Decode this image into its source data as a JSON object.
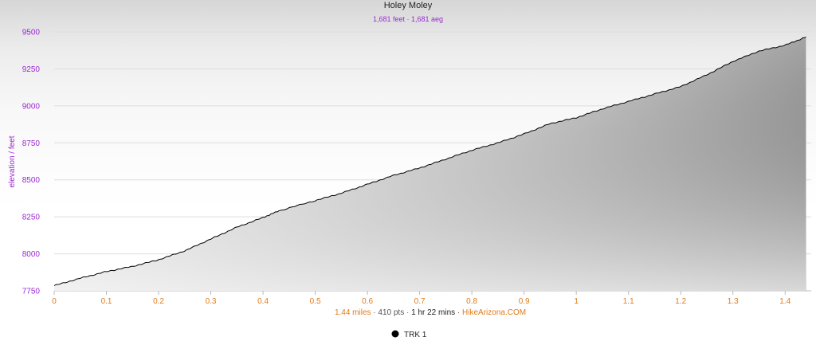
{
  "chart_data": {
    "type": "area",
    "title": "Holey Moley",
    "subtitle": "1,681 feet · 1,681 aeg",
    "ylabel": "elevation / feet",
    "xlabel": "",
    "xlim": [
      0,
      1.45
    ],
    "ylim": [
      7750,
      9500
    ],
    "yticks": [
      7750,
      8000,
      8250,
      8500,
      8750,
      9000,
      9250,
      9500
    ],
    "xticks": [
      0,
      0.1,
      0.2,
      0.3,
      0.4,
      0.5,
      0.6,
      0.7,
      0.8,
      0.9,
      1,
      1.1,
      1.2,
      1.3,
      1.4
    ],
    "grid": true,
    "legend_position": "bottom-center",
    "series": [
      {
        "name": "TRK 1",
        "color": "#000000",
        "x": [
          0,
          0.05,
          0.1,
          0.15,
          0.2,
          0.25,
          0.3,
          0.35,
          0.4,
          0.43,
          0.5,
          0.55,
          0.6,
          0.65,
          0.7,
          0.75,
          0.8,
          0.85,
          0.9,
          0.95,
          1.0,
          1.05,
          1.1,
          1.15,
          1.2,
          1.25,
          1.3,
          1.35,
          1.4,
          1.44
        ],
        "y": [
          7785,
          7835,
          7880,
          7915,
          7960,
          8020,
          8100,
          8180,
          8245,
          8290,
          8360,
          8410,
          8470,
          8530,
          8580,
          8640,
          8700,
          8750,
          8810,
          8880,
          8920,
          8980,
          9030,
          9080,
          9130,
          9210,
          9300,
          9370,
          9410,
          9465
        ]
      }
    ]
  },
  "footer": {
    "distance": "1.44 miles",
    "sep1": " · ",
    "points": "410 pts",
    "sep2": " · ",
    "duration": "1 hr 22 mins",
    "sep3": " · ",
    "site": "HikeArizona.COM"
  },
  "colors": {
    "accent_purple": "#9b2ad6",
    "accent_orange": "#e07b1a",
    "grid": "#dddddd"
  }
}
